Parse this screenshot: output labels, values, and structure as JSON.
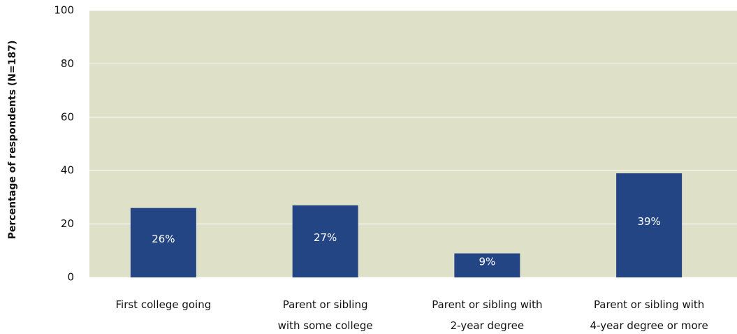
{
  "chart_data": {
    "type": "bar",
    "y_label": "Percentage of respondents (N=187)",
    "categories": [
      "First college going",
      "Parent or sibling\nwith some college",
      "Parent or sibling with\n2-year degree",
      "Parent or sibling with\n4-year degree or more"
    ],
    "values": [
      26,
      27,
      9,
      39
    ],
    "value_labels": [
      "26%",
      "27%",
      "9%",
      "39%"
    ],
    "color": "#234583",
    "ylim": [
      0,
      100
    ],
    "yticks": [
      0,
      20,
      40,
      60,
      80,
      100
    ],
    "grid": true
  }
}
